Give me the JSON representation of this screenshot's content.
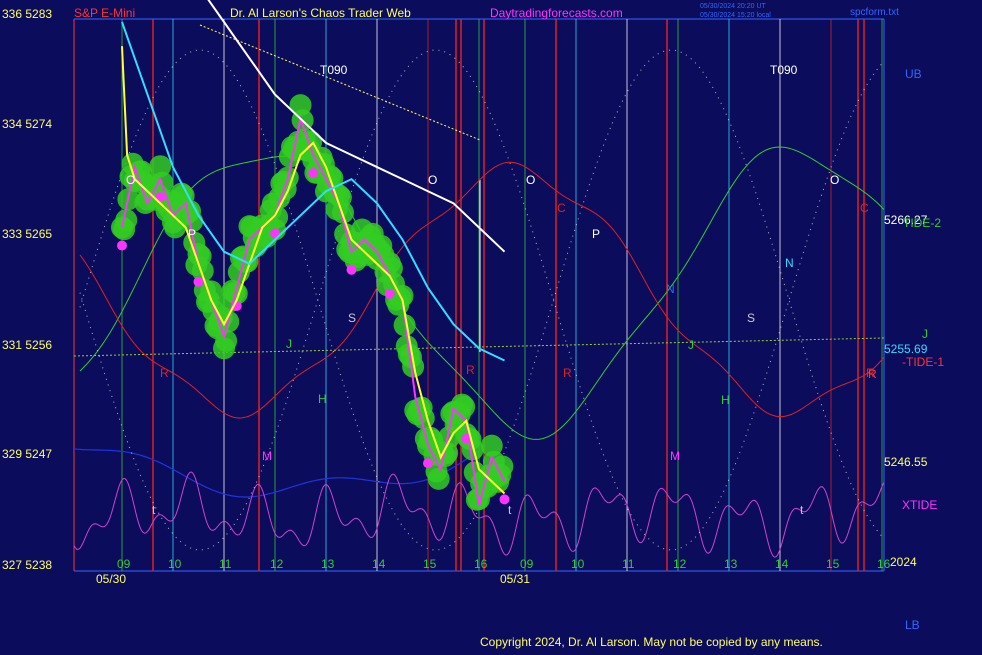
{
  "header": {
    "symbol": "S&P E-Mini",
    "title": "Dr. Al Larson's Chaos Trader Web",
    "site": "Daytradingforecasts.com",
    "timestamp_1": "05/30/2024 20:20 UT",
    "timestamp_2": "05/30/2024 15:20 local",
    "file": "spcform.txt"
  },
  "footer": {
    "copyright": "Copyright 2024, Dr. Al Larson. May not be copied by any means.",
    "year": "2024"
  },
  "colors": {
    "background": "#0c0c5c",
    "price_bars": "#ff33ff",
    "ema_fast": "#ffff33",
    "ema_mid": "#33ddff",
    "ema_slow": "#ffffff",
    "tide1": "#dd2222",
    "tide2": "#33cc33",
    "xtide": "#cc44cc",
    "flux": "#2233dd",
    "glow": "#33cc22"
  },
  "chart_data": {
    "type": "line",
    "title": "S&P E-Mini",
    "y_left_1": {
      "ticks": [
        336,
        334,
        333,
        331,
        329,
        327
      ]
    },
    "y_left_2": {
      "ticks": [
        5283,
        5274,
        5265,
        5256,
        5247,
        5238
      ],
      "ylim": [
        5238,
        5283
      ]
    },
    "x_hour_labels_day1": [
      "09",
      "10",
      "11",
      "12",
      "13",
      "14",
      "15",
      "16"
    ],
    "x_hour_labels_day2": [
      "09",
      "10",
      "11",
      "12",
      "13",
      "14",
      "15",
      "16"
    ],
    "x_dates": [
      "05/30",
      "05/31"
    ],
    "right_labels": {
      "ub": "UB",
      "tide2": "TIDE-2",
      "price_5266": "5266.27",
      "j": "J",
      "price_5255": "5255.69",
      "tide1": "-TIDE-1",
      "r": "R",
      "price_5246": "5246.55",
      "xtide": "XTIDE",
      "lb": "LB"
    },
    "annotations_day1": [
      "T090",
      "O",
      "P",
      "R",
      "M",
      "J",
      "H",
      "S",
      "O",
      "t",
      "R"
    ],
    "annotations_day2": [
      "T090",
      "O",
      "C",
      "P",
      "R",
      "N",
      "M",
      "J",
      "H",
      "S",
      "N",
      "O",
      "C",
      "R",
      "t",
      "t"
    ],
    "series": [
      {
        "name": "price",
        "x": [
          0,
          0.25,
          0.5,
          0.75,
          1,
          1.25,
          1.5,
          1.75,
          2,
          2.25,
          2.5,
          2.75,
          3,
          3.25,
          3.5,
          3.75,
          4,
          4.25,
          4.5,
          4.75,
          5,
          5.25,
          5.5,
          5.75,
          6,
          6.25,
          6.5,
          6.75,
          7,
          7.25,
          7.5
        ],
        "values": [
          5266,
          5271,
          5268,
          5270,
          5267,
          5268,
          5263,
          5260,
          5257,
          5261,
          5265,
          5266,
          5267,
          5270,
          5275,
          5272,
          5270,
          5268,
          5264,
          5265,
          5264,
          5262,
          5260,
          5252,
          5248,
          5246,
          5251,
          5250,
          5243,
          5247,
          5245
        ]
      },
      {
        "name": "ema_fast",
        "x": [
          0,
          0.1,
          0.25,
          0.5,
          0.75,
          1,
          1.25,
          1.5,
          1.75,
          2,
          2.25,
          2.5,
          2.75,
          3,
          3.25,
          3.5,
          3.75,
          4,
          4.25,
          4.5,
          4.75,
          5,
          5.25,
          5.5,
          5.75,
          6,
          6.25,
          6.5,
          6.75,
          7,
          7.25,
          7.5
        ],
        "values": [
          5281,
          5272,
          5270,
          5269,
          5268,
          5267,
          5266,
          5263,
          5260,
          5258,
          5260,
          5263,
          5266,
          5267,
          5269,
          5272,
          5273,
          5271,
          5268,
          5265,
          5264,
          5263,
          5262,
          5260,
          5254,
          5250,
          5247,
          5249,
          5250,
          5246,
          5245,
          5244
        ]
      },
      {
        "name": "ema_mid",
        "x": [
          0,
          0.5,
          1,
          1.5,
          2,
          2.5,
          3,
          3.5,
          4,
          4.5,
          5,
          5.5,
          6,
          6.5,
          7,
          7.5
        ],
        "values": [
          5283,
          5277,
          5271,
          5267,
          5264,
          5263,
          5265,
          5267,
          5269,
          5270,
          5268,
          5265,
          5261,
          5258,
          5256,
          5255
        ]
      },
      {
        "name": "ema_slow",
        "x": [
          1.5,
          2,
          2.5,
          3,
          3.5,
          4,
          4.5,
          5,
          5.5,
          6,
          6.5,
          7,
          7.5
        ],
        "values": [
          5286,
          5283,
          5280,
          5277,
          5275,
          5273,
          5272,
          5271,
          5270,
          5269,
          5268,
          5266,
          5264
        ]
      }
    ]
  }
}
